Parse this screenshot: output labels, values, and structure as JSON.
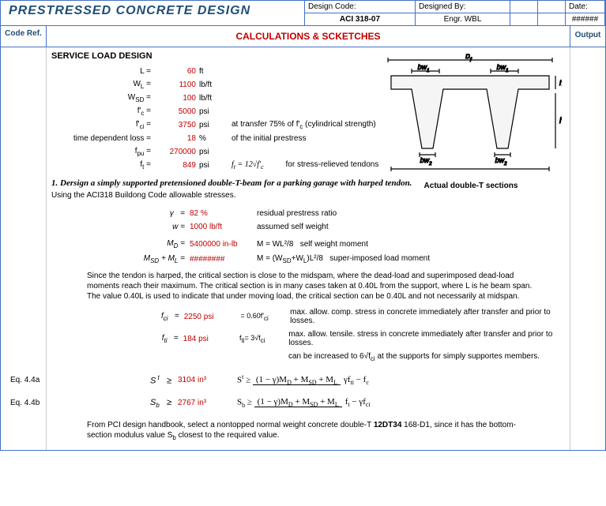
{
  "title": "PRESTRESSED CONCRETE DESIGN",
  "header": {
    "design_code_label": "Design Code:",
    "design_code": "ACI 318-07",
    "designed_by_label": "Designed By:",
    "designed_by": "Engr. WBL",
    "date_label": "Date:",
    "date": "######"
  },
  "subheader": {
    "code_ref": "Code Ref.",
    "calc_title": "CALCULATIONS & SCKETCHES",
    "output": "Output"
  },
  "section_title": "SERVICE LOAD DESIGN",
  "params": [
    {
      "label": "L =",
      "value": "60",
      "unit": "ft",
      "note": ""
    },
    {
      "label": "W<sub>L</sub> =",
      "value": "1100",
      "unit": "lb/ft",
      "note": ""
    },
    {
      "label": "W<sub>SD</sub> =",
      "value": "100",
      "unit": "lb/ft",
      "note": ""
    },
    {
      "label": "f'<sub>c</sub> =",
      "value": "5000",
      "unit": "psi",
      "note": ""
    },
    {
      "label": "f'<sub>ci</sub> =",
      "value": "3750",
      "unit": "psi",
      "note": "at transfer 75% of f'<sub>c</sub> (cylindrical strength)"
    },
    {
      "label": "time dependent loss =",
      "value": "18",
      "unit": "%",
      "note": "of the initial prestress"
    },
    {
      "label": "f<sub>pu</sub> =",
      "value": "270000",
      "unit": "psi",
      "note": ""
    },
    {
      "label": "f<sub>t</sub> =",
      "value": "849",
      "unit": "psi",
      "note": "<span class='formula-inline'>f<sub>t</sub> = 12√f'<sub>c</sub></span>&nbsp;&nbsp;&nbsp;&nbsp;&nbsp;&nbsp;&nbsp;&nbsp;&nbsp;&nbsp;for stress-relieved tendons"
    }
  ],
  "diagram_caption": "Actual double-T sections",
  "problem": "1.  Dersign a simply supported pretensioned double-T-beam for a parking garage with harped tendon.",
  "problem_sub": "Using the ACI318 Buildong Code allowable stresses.",
  "calcs1": [
    {
      "label": "γ&nbsp;&nbsp;&nbsp;=",
      "value": "82 %",
      "note": "residual prestress ratio"
    },
    {
      "label": "w =",
      "value": "1000 lb/ft",
      "note": "assumed self weight"
    }
  ],
  "calcs2": [
    {
      "label": "M<sub>D</sub> =",
      "value": "5400000 in-lb",
      "note": "M = WL²/8&nbsp;&nbsp;&nbsp;self weight moment"
    },
    {
      "label": "M<sub>SD</sub> + M<sub>L</sub> =",
      "value": "########",
      "note": "M = (W<sub>SD</sub>+W<sub>L</sub>)L²/8&nbsp;&nbsp;&nbsp;super-imposed load moment"
    }
  ],
  "para1": "Since the tendon is harped, the critical section is close to the midspam, where the dead-load and superimposed dead-load moments reach their maximum. The critical section is in many cases taken at 0.40L from the support, where L is he beam span.  The value 0.40L is used to indicate that under moving load, the critical section can be 0.40L and not necessarily at midspan.",
  "calcs3": [
    {
      "label": "f<sub>ci</sub>&nbsp;&nbsp;&nbsp;=",
      "value": "2250 psi",
      "formula": "= 0.60f'<sub>ci</sub>",
      "note": "max. allow. comp. stress in concrete immediately after transfer and prior to losses."
    },
    {
      "label": "f<sub>ti</sub>&nbsp;&nbsp;&nbsp;=",
      "value": "184 psi",
      "formula": "f<sub>ti</sub>= 3√f<sub>ci</sub>",
      "note": "max. allow. tensile. stress in concrete immediately after transfer and prior to losses."
    }
  ],
  "note_6sqrt": "can be increased to 6√f<sub>ci</sub> at the supports for simply supportes members.",
  "equations": [
    {
      "ref": "Eq. 4.4a",
      "sym": "S<sup>&nbsp;t</sup>",
      "val": "3104 in³",
      "formula_num": "(1 − γ)M<sub>D</sub> + M<sub>SD</sub> + M<sub>L</sub>",
      "formula_den": "γf<sub>ti</sub> − f<sub>c</sub>",
      "pre": "S<sup>t</sup> ≥"
    },
    {
      "ref": "Eq. 4.4b",
      "sym": "S<sub>b</sub>",
      "val": "2767 in³",
      "formula_num": "(1 − γ)M<sub>D</sub> + M<sub>SD</sub> + M<sub>L</sub>",
      "formula_den": "f<sub>t</sub> − γf<sub>ci</sub>",
      "pre": "S<sub>b</sub> ≥"
    }
  ],
  "para2": "From PCI design handbook, select a nontopped normal weight concrete double-T <b>12DT34</b> 168-D1, since it has the bottom-section modulus value S<sub>b</sub> closest to the required value."
}
